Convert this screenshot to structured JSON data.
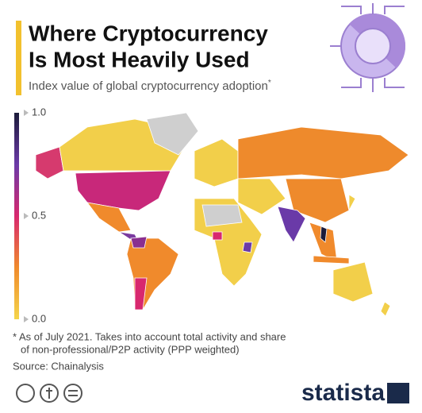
{
  "header": {
    "title_lines": [
      "Where Cryptocurrency",
      "Is Most Heavily Used"
    ],
    "subtitle": "Index value of global cryptocurrency adoption",
    "subtitle_mark": "*"
  },
  "legend": {
    "colors": [
      "#f4d54a",
      "#f08a2c",
      "#d8286e",
      "#6b3aa8",
      "#1b1b3a"
    ],
    "range": [
      0,
      1
    ],
    "ticks": [
      {
        "value": 1,
        "label": "1.0"
      },
      {
        "value": 0.5,
        "label": "0.5"
      },
      {
        "value": 0,
        "label": "0.0"
      }
    ]
  },
  "footer": {
    "note_lines": [
      "* As of July 2021. Takes into account total activity and share",
      "of non-professional/P2P activity (PPP weighted)"
    ],
    "source": "Source: Chainalysis",
    "brand": "statista"
  }
}
